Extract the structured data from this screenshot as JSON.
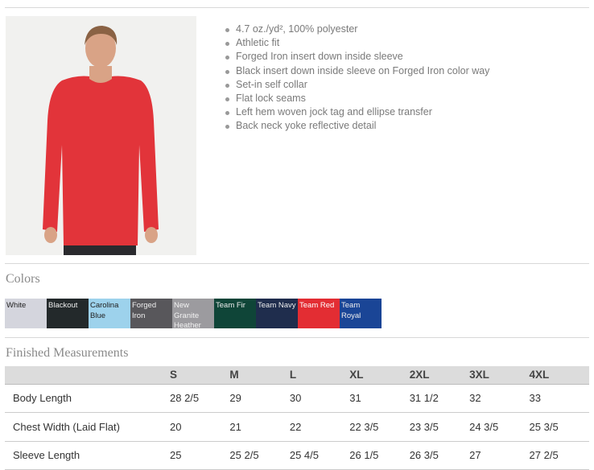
{
  "product": {
    "features": [
      "4.7 oz./yd², 100% polyester",
      "Athletic fit",
      "Forged Iron insert down inside sleeve",
      "Black insert down inside sleeve on Forged Iron color way",
      "Set-in self collar",
      "Flat lock seams",
      "Left hem woven jock tag and ellipse transfer",
      "Back neck yoke reflective detail"
    ]
  },
  "colors": {
    "title": "Colors",
    "swatches": [
      {
        "name": "White",
        "bg": "#d4d5dd",
        "fg": "#222"
      },
      {
        "name": "Blackout",
        "bg": "#23292b",
        "fg": "#eee"
      },
      {
        "name": "Carolina Blue",
        "bg": "#9dd2ec",
        "fg": "#222"
      },
      {
        "name": "Forged Iron",
        "bg": "#58575b",
        "fg": "#eee"
      },
      {
        "name": "New Granite Heather",
        "bg": "#9c9b9f",
        "fg": "#f2f2f2"
      },
      {
        "name": "Team Fir",
        "bg": "#0f4538",
        "fg": "#eee"
      },
      {
        "name": "Team Navy",
        "bg": "#1f2d4d",
        "fg": "#eee"
      },
      {
        "name": "Team Red",
        "bg": "#e32d33",
        "fg": "#fff"
      },
      {
        "name": "Team Royal",
        "bg": "#1a4596",
        "fg": "#eee"
      }
    ]
  },
  "measurements": {
    "title": "Finished Measurements",
    "headers": [
      "",
      "S",
      "M",
      "L",
      "XL",
      "2XL",
      "3XL",
      "4XL"
    ],
    "rows": [
      [
        "Body Length",
        "28 2/5",
        "29",
        "30",
        "31",
        "31 1/2",
        "32",
        "33"
      ],
      [
        "Chest Width (Laid Flat)",
        "20",
        "21",
        "22",
        "22 3/5",
        "23 3/5",
        "24 3/5",
        "25 3/5"
      ],
      [
        "Sleeve Length",
        "25",
        "25 2/5",
        "25 4/5",
        "26 1/5",
        "26 3/5",
        "27",
        "27 2/5"
      ]
    ]
  }
}
